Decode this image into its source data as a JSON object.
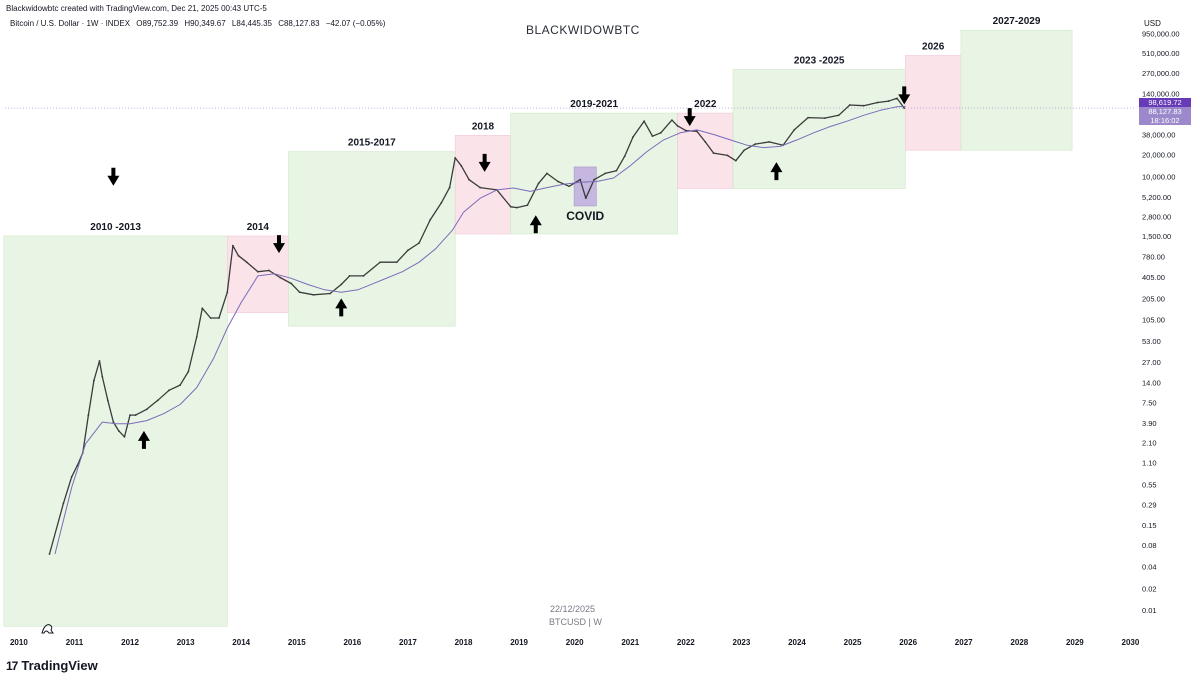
{
  "header": {
    "attribution": "Blackwidowbtc created with TradingView.com, Dec 21, 2025 00:43 UTC-5",
    "symbol_title": "Bitcoin / U.S. Dollar · 1W · INDEX",
    "ohlc": {
      "open": "O89,752.39",
      "high": "H90,349.67",
      "low": "L84,445.35",
      "close": "C88,127.83",
      "change": "−42.07 (−0.05%)"
    },
    "watermark": "BLACKWIDOWBTC",
    "currency": "USD"
  },
  "footer": {
    "brand": "TradingView",
    "logo_mark": "17",
    "date_label": "22/12/2025",
    "symbol_interval": "BTCUSD | W"
  },
  "price_tags": {
    "line_price": "98,619.72",
    "last_price": "88,127.83",
    "countdown": "18:16:02"
  },
  "colors": {
    "green_zone": "#e8f5e4",
    "pink_zone": "#fbe3ea",
    "purple_zone": "#c5b7df",
    "candles": "#3b3b3b",
    "moving_average": "#7b6bb8",
    "line_price_tag": "#673ab7",
    "last_price_tag": "#9c89cc"
  },
  "chart_data": {
    "type": "line",
    "title": "BLACKWIDOWBTC",
    "y_scale": "log",
    "ylim": [
      0.005,
      2000000
    ],
    "xlim": [
      2009.75,
      2030.1
    ],
    "x_ticks": [
      "2010",
      "2011",
      "2012",
      "2013",
      "2014",
      "2015",
      "2016",
      "2017",
      "2018",
      "2019",
      "2020",
      "2021",
      "2022",
      "2023",
      "2024",
      "2025",
      "2026",
      "2027",
      "2028",
      "2029",
      "2030"
    ],
    "y_ticks": [
      {
        "value": 950000,
        "label": "950,000.00"
      },
      {
        "value": 510000,
        "label": "510,000.00"
      },
      {
        "value": 270000,
        "label": "270,000.00"
      },
      {
        "value": 140000,
        "label": "140,000.00"
      },
      {
        "value": 38000,
        "label": "38,000.00"
      },
      {
        "value": 20000,
        "label": "20,000.00"
      },
      {
        "value": 10000,
        "label": "10,000.00"
      },
      {
        "value": 5200,
        "label": "5,200.00"
      },
      {
        "value": 2800,
        "label": "2,800.00"
      },
      {
        "value": 1500,
        "label": "1,500.00"
      },
      {
        "value": 780,
        "label": "780.00"
      },
      {
        "value": 405,
        "label": "405.00"
      },
      {
        "value": 205,
        "label": "205.00"
      },
      {
        "value": 105,
        "label": "105.00"
      },
      {
        "value": 53,
        "label": "53.00"
      },
      {
        "value": 27,
        "label": "27.00"
      },
      {
        "value": 14,
        "label": "14.00"
      },
      {
        "value": 7.5,
        "label": "7.50"
      },
      {
        "value": 3.9,
        "label": "3.90"
      },
      {
        "value": 2.1,
        "label": "2.10"
      },
      {
        "value": 1.1,
        "label": "1.10"
      },
      {
        "value": 0.55,
        "label": "0.55"
      },
      {
        "value": 0.29,
        "label": "0.29"
      },
      {
        "value": 0.15,
        "label": "0.15"
      },
      {
        "value": 0.08,
        "label": "0.08"
      },
      {
        "value": 0.04,
        "label": "0.04"
      },
      {
        "value": 0.02,
        "label": "0.02"
      },
      {
        "value": 0.01,
        "label": "0.01"
      }
    ],
    "series": [
      {
        "kind": "price",
        "x": [
          2010.55,
          2010.8,
          2010.95,
          2011.05,
          2011.15,
          2011.25,
          2011.35,
          2011.45,
          2011.5,
          2011.6,
          2011.7,
          2011.8,
          2011.9,
          2012.0,
          2012.1,
          2012.3,
          2012.5,
          2012.7,
          2012.9,
          2013.05,
          2013.2,
          2013.3,
          2013.45,
          2013.6,
          2013.75,
          2013.85,
          2013.95,
          2014.1,
          2014.3,
          2014.5,
          2014.7,
          2014.9,
          2015.05,
          2015.3,
          2015.6,
          2015.8,
          2015.95,
          2016.2,
          2016.5,
          2016.8,
          2017.0,
          2017.2,
          2017.4,
          2017.6,
          2017.75,
          2017.85,
          2017.96,
          2018.1,
          2018.3,
          2018.6,
          2018.85,
          2018.96,
          2019.15,
          2019.35,
          2019.5,
          2019.7,
          2019.9,
          2020.1,
          2020.2,
          2020.35,
          2020.55,
          2020.75,
          2020.9,
          2021.05,
          2021.25,
          2021.4,
          2021.55,
          2021.75,
          2021.85,
          2022.0,
          2022.2,
          2022.35,
          2022.5,
          2022.75,
          2022.9,
          2023.05,
          2023.25,
          2023.5,
          2023.75,
          2023.95,
          2024.2,
          2024.5,
          2024.75,
          2024.95,
          2025.2,
          2025.45,
          2025.65,
          2025.8,
          2025.93
        ],
        "y": [
          0.06,
          0.3,
          0.7,
          1.0,
          1.5,
          5,
          15,
          28,
          17,
          8,
          4,
          3,
          2.5,
          5,
          5,
          6,
          8,
          11,
          13,
          20,
          60,
          150,
          110,
          110,
          250,
          1100,
          800,
          650,
          480,
          500,
          400,
          330,
          250,
          230,
          240,
          320,
          420,
          420,
          650,
          650,
          950,
          1200,
          2500,
          4300,
          7000,
          18000,
          14000,
          9000,
          7000,
          6500,
          3800,
          3700,
          4000,
          8000,
          11000,
          8500,
          7300,
          9000,
          5000,
          9000,
          11000,
          12000,
          19000,
          35000,
          58000,
          36000,
          40000,
          60000,
          50000,
          43000,
          42000,
          30000,
          21000,
          19500,
          16500,
          23000,
          28000,
          30000,
          27000,
          44000,
          65000,
          64000,
          70000,
          97000,
          95000,
          105000,
          110000,
          120000,
          88000
        ]
      },
      {
        "kind": "moving_average",
        "x": [
          2010.65,
          2010.95,
          2011.2,
          2011.5,
          2011.75,
          2012.0,
          2012.3,
          2012.6,
          2012.9,
          2013.2,
          2013.5,
          2013.75,
          2014.0,
          2014.3,
          2014.6,
          2014.9,
          2015.2,
          2015.5,
          2015.8,
          2016.1,
          2016.5,
          2016.9,
          2017.2,
          2017.5,
          2017.8,
          2018.0,
          2018.3,
          2018.6,
          2018.9,
          2019.2,
          2019.5,
          2019.8,
          2020.1,
          2020.4,
          2020.7,
          2021.0,
          2021.3,
          2021.6,
          2021.9,
          2022.2,
          2022.5,
          2022.8,
          2023.1,
          2023.4,
          2023.7,
          2024.0,
          2024.3,
          2024.6,
          2024.9,
          2025.2,
          2025.5,
          2025.8,
          2025.95
        ],
        "y": [
          0.06,
          0.5,
          2,
          4,
          3.8,
          3.8,
          4.2,
          5.2,
          7,
          12,
          30,
          80,
          180,
          420,
          450,
          390,
          320,
          270,
          250,
          270,
          360,
          480,
          650,
          1000,
          1800,
          3200,
          5000,
          6500,
          6900,
          6200,
          7000,
          7800,
          8300,
          8500,
          9500,
          14000,
          22000,
          32000,
          40000,
          44000,
          38000,
          32000,
          27000,
          25000,
          26000,
          32000,
          40000,
          49000,
          58000,
          70000,
          82000,
          92000,
          93000
        ]
      }
    ],
    "zones": [
      {
        "label": "2010 -2013",
        "color": "green",
        "x0": 2009.73,
        "x1": 2013.75,
        "y0": 0.006,
        "y1": 1500
      },
      {
        "label": "2014",
        "color": "pink",
        "x0": 2013.75,
        "x1": 2014.85,
        "y0": 130,
        "y1": 1500
      },
      {
        "label": "2015-2017",
        "color": "green",
        "x0": 2014.85,
        "x1": 2017.85,
        "y0": 85,
        "y1": 22000
      },
      {
        "label": "2018",
        "color": "pink",
        "x0": 2017.85,
        "x1": 2018.85,
        "y0": 1600,
        "y1": 37000
      },
      {
        "label": "2019-2021",
        "color": "green",
        "x0": 2018.85,
        "x1": 2021.85,
        "y0": 1600,
        "y1": 75000
      },
      {
        "label": "COVID",
        "color": "purple",
        "x0": 2019.99,
        "x1": 2020.39,
        "y0": 3900,
        "y1": 13500
      },
      {
        "label": "2022",
        "color": "pink",
        "x0": 2021.85,
        "x1": 2022.85,
        "y0": 6800,
        "y1": 75000
      },
      {
        "label": "2023 -2025",
        "color": "green",
        "x0": 2022.85,
        "x1": 2025.95,
        "y0": 6800,
        "y1": 300000
      },
      {
        "label": "2026",
        "color": "pink",
        "x0": 2025.95,
        "x1": 2026.95,
        "y0": 23000,
        "y1": 470000
      },
      {
        "label": "2027-2029",
        "color": "green",
        "x0": 2026.95,
        "x1": 2028.95,
        "y0": 23000,
        "y1": 1050000
      }
    ],
    "arrows": [
      {
        "direction": "down",
        "x": 2011.7,
        "y": 9000
      },
      {
        "direction": "up",
        "x": 2012.25,
        "y": 2.5
      },
      {
        "direction": "down",
        "x": 2014.68,
        "y": 1050
      },
      {
        "direction": "up",
        "x": 2015.8,
        "y": 170
      },
      {
        "direction": "down",
        "x": 2018.38,
        "y": 14000
      },
      {
        "direction": "up",
        "x": 2019.3,
        "y": 2400
      },
      {
        "direction": "down",
        "x": 2022.07,
        "y": 60000
      },
      {
        "direction": "up",
        "x": 2023.63,
        "y": 13000
      },
      {
        "direction": "down",
        "x": 2025.93,
        "y": 120000
      }
    ]
  }
}
